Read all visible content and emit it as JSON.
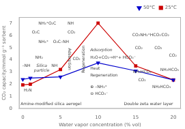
{
  "chart_data": {
    "type": "line",
    "xlabel": "Water vapor concentration (% vol)",
    "ylabel": "CO₂ capacity/mmol g⁻¹ sorbent",
    "x": [
      0,
      1,
      5,
      10,
      15,
      20
    ],
    "series": [
      {
        "name": "50°C",
        "color": "#0000cc",
        "marker": "triangle_down",
        "values": [
          2.4,
          2.5,
          2.6,
          3.75,
          3.1,
          2.35
        ]
      },
      {
        "name": "25°C",
        "color": "#cc0000",
        "marker": "square",
        "values": [
          1.95,
          2.0,
          3.2,
          7.0,
          3.5,
          2.35
        ]
      }
    ],
    "xlim": [
      -0.5,
      21
    ],
    "ylim": [
      0,
      7.5
    ],
    "xticks": [
      0,
      5,
      10,
      15,
      20
    ],
    "yticks": [
      0,
      1,
      2,
      3,
      4,
      5,
      6,
      7
    ],
    "legend": "upper right",
    "grid": false,
    "annotations": [
      "NH₃⁺O₂C",
      "NH",
      "O₂C",
      "CO₂",
      "NH₃⁺",
      "O₂C–NH",
      "Silica\nparticle",
      "H₂N",
      "NH₂",
      "NH",
      "–NH",
      "Amine-modified silica aerogel",
      "Adsorption",
      "Regeneration",
      "CO₂",
      "Adsorption",
      "H₂O+CO₂⇒H⁺+ HCO₃⁻",
      "Heat",
      "Regeneration",
      "⊕ –NH₃⁺",
      "⊖ HCO₃⁻",
      "CO₂",
      "CO₂",
      "CO₂",
      "NH₂HCO₃",
      "CO₂",
      "NH₂HCO₃",
      "NH₂HCO₃",
      "CO₂NH₂⁺HCO₃⁻",
      "CO₂",
      "Double zeta water layer"
    ]
  }
}
